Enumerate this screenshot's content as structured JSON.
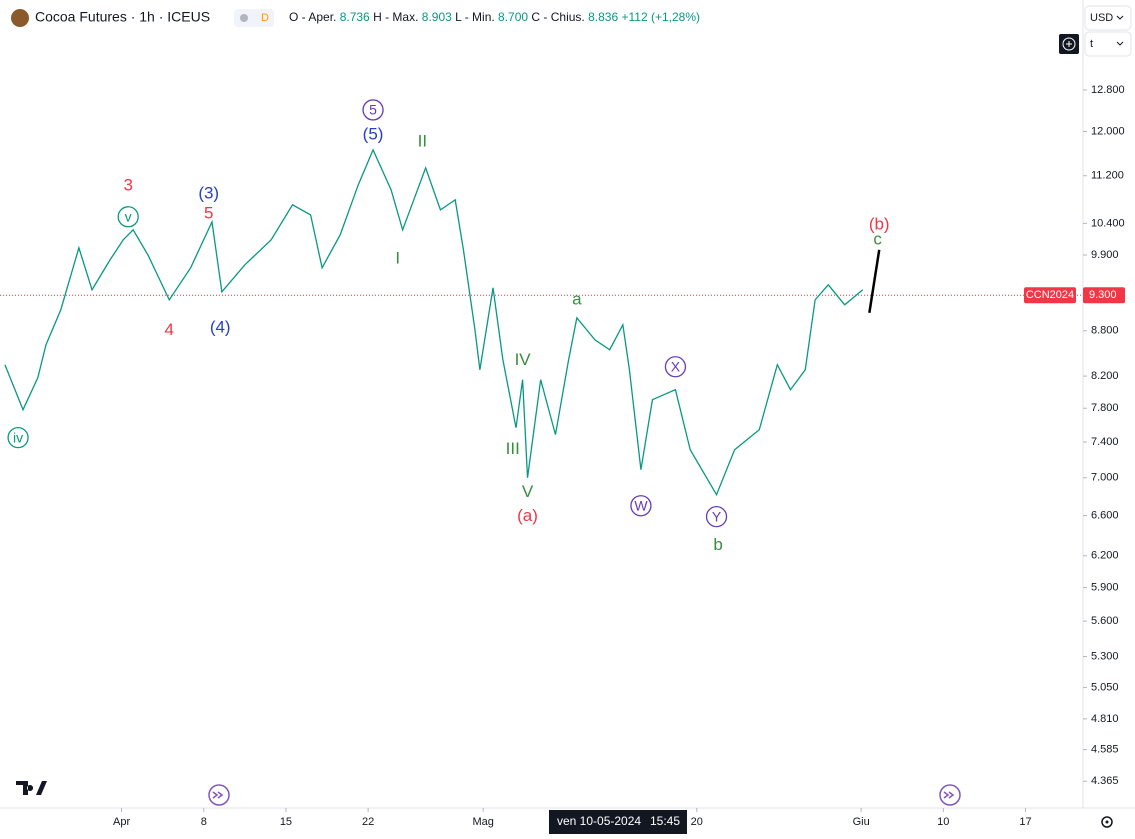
{
  "header": {
    "title": "Cocoa Futures · 1h · ICEUS",
    "badge": "D",
    "ohlc": [
      {
        "label": "O - Aper.",
        "value": "8.736"
      },
      {
        "label": "H - Max.",
        "value": "8.903"
      },
      {
        "label": "L - Min.",
        "value": "8.700"
      },
      {
        "label": "C - Chius.",
        "value": "8.836"
      }
    ],
    "change": "+112 (+1,28%)",
    "currency": "USD",
    "unit": "t"
  },
  "chart_data": {
    "type": "line",
    "log_scale": true,
    "grid": false,
    "xlim": [
      -7.4,
      58.5
    ],
    "ylim": [
      4187,
      14723
    ],
    "xticks": [
      {
        "value": 0,
        "label": "Apr"
      },
      {
        "value": 5,
        "label": "8"
      },
      {
        "value": 10,
        "label": "15"
      },
      {
        "value": 15,
        "label": "22"
      },
      {
        "value": 22,
        "label": "Mag"
      },
      {
        "value": 35,
        "label": "20"
      },
      {
        "value": 45,
        "label": "Giu"
      },
      {
        "value": 50,
        "label": "10"
      },
      {
        "value": 55,
        "label": "17"
      }
    ],
    "yticks": [
      {
        "value": 12800,
        "label": "12.800"
      },
      {
        "value": 12000,
        "label": "12.000"
      },
      {
        "value": 11200,
        "label": "11.200"
      },
      {
        "value": 10400,
        "label": "10.400"
      },
      {
        "value": 9900,
        "label": "9.900"
      },
      {
        "value": 8800,
        "label": "8.800"
      },
      {
        "value": 8200,
        "label": "8.200"
      },
      {
        "value": 7800,
        "label": "7.800"
      },
      {
        "value": 7400,
        "label": "7.400"
      },
      {
        "value": 7000,
        "label": "7.000"
      },
      {
        "value": 6600,
        "label": "6.600"
      },
      {
        "value": 6200,
        "label": "6.200"
      },
      {
        "value": 5900,
        "label": "5.900"
      },
      {
        "value": 5600,
        "label": "5.600"
      },
      {
        "value": 5300,
        "label": "5.300"
      },
      {
        "value": 5050,
        "label": "5.050"
      },
      {
        "value": 4810,
        "label": "4.810"
      },
      {
        "value": 4585,
        "label": "4.585"
      },
      {
        "value": 4365,
        "label": "4.365"
      }
    ],
    "series": [
      {
        "color": "#089981",
        "x": [
          -7.1,
          -6.0,
          -5.1,
          -4.6,
          -3.7,
          -2.6,
          -1.8,
          -0.7,
          0.1,
          0.7,
          1.6,
          2.9,
          4.2,
          5.5,
          6.1,
          7.5,
          9.1,
          10.4,
          11.5,
          12.2,
          13.3,
          14.4,
          15.3,
          16.4,
          17.1,
          18.5,
          19.4,
          20.3,
          20.8,
          21.5,
          21.8,
          22.6,
          23.2,
          24.0,
          24.4,
          24.7,
          25.5,
          26.4,
          27.2,
          27.7,
          28.8,
          29.7,
          30.5,
          30.9,
          31.6,
          32.3,
          33.7,
          34.6,
          36.2,
          37.3,
          38.8,
          39.9,
          40.7,
          41.6,
          42.2,
          43.0,
          44.0,
          45.1
        ],
        "values": [
          8346,
          7782,
          8179,
          8610,
          9092,
          10012,
          9379,
          9827,
          10137,
          10296,
          9903,
          9233,
          9705,
          10424,
          9349,
          9750,
          10137,
          10705,
          10538,
          9705,
          10216,
          11043,
          11661,
          10955,
          10296,
          11338,
          10621,
          10787,
          9980,
          8813,
          8281,
          9408,
          8411,
          7567,
          8154,
          7000,
          8154,
          7486,
          8411,
          8978,
          8677,
          8543,
          8881,
          8281,
          7089,
          7904,
          8028,
          7312,
          6818,
          7312,
          7543,
          8346,
          8028,
          8281,
          9233,
          9452,
          9162,
          9379
        ]
      }
    ],
    "last_price": {
      "symbol": "CCN2024",
      "value": 9300,
      "label": "9.300",
      "color": "#f23645"
    },
    "projection": {
      "x": [
        45.5,
        46.1
      ],
      "values": [
        9048,
        9980
      ],
      "color": "#000000"
    },
    "crosshair": {
      "date": "ven 10-05-2024",
      "time": "15:45"
    },
    "annotations": [
      {
        "text": "3",
        "x": 0.4,
        "y": 11043,
        "color": "#f23645"
      },
      {
        "text": "5",
        "x": 5.3,
        "y": 10570,
        "color": "#f23645"
      },
      {
        "text": "4",
        "x": 2.9,
        "y": 8813,
        "color": "#f23645"
      },
      {
        "text": "(3)",
        "x": 5.3,
        "y": 10906,
        "color": "#2940c4"
      },
      {
        "text": "(4)",
        "x": 6.0,
        "y": 8853,
        "color": "#2940c4"
      },
      {
        "text": "(5)",
        "x": 15.3,
        "y": 11954,
        "color": "#2940c4"
      },
      {
        "text": "5",
        "x": 15.3,
        "y": 12408,
        "color": "#673ab7",
        "circled": true
      },
      {
        "text": "v",
        "x": 0.4,
        "y": 10507,
        "color": "#089981",
        "circled": true
      },
      {
        "text": "iv",
        "x": -6.3,
        "y": 7451,
        "color": "#089981",
        "circled": true
      },
      {
        "text": "II",
        "x": 18.3,
        "y": 11825,
        "color": "#388e3c"
      },
      {
        "text": "I",
        "x": 16.8,
        "y": 9857,
        "color": "#388e3c"
      },
      {
        "text": "IV",
        "x": 24.4,
        "y": 8411,
        "color": "#388e3c"
      },
      {
        "text": "III",
        "x": 23.8,
        "y": 7324,
        "color": "#388e3c"
      },
      {
        "text": "V",
        "x": 24.7,
        "y": 6851,
        "color": "#388e3c"
      },
      {
        "text": "(a)",
        "x": 24.7,
        "y": 6600,
        "color": "#f23645"
      },
      {
        "text": "a",
        "x": 27.7,
        "y": 9248,
        "color": "#388e3c"
      },
      {
        "text": "X",
        "x": 33.7,
        "y": 8320,
        "color": "#673ab7",
        "circled": true
      },
      {
        "text": "W",
        "x": 31.6,
        "y": 6702,
        "color": "#673ab7",
        "circled": true
      },
      {
        "text": "Y",
        "x": 36.2,
        "y": 6589,
        "color": "#673ab7",
        "circled": true
      },
      {
        "text": "b",
        "x": 36.3,
        "y": 6308,
        "color": "#388e3c"
      },
      {
        "text": "c",
        "x": 46.0,
        "y": 10153,
        "color": "#388e3c"
      },
      {
        "text": "(b)",
        "x": 46.1,
        "y": 10392,
        "color": "#f23645"
      }
    ]
  }
}
